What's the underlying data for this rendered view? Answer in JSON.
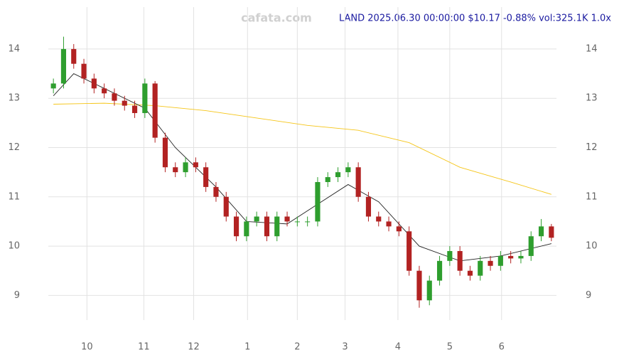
{
  "chart_data": {
    "type": "candlestick",
    "watermark": "cafata.com",
    "title": "LAND 2025.06.30 00:00:00 $10.17 -0.88% vol:325.1K 1.0x",
    "xlim": [
      -0.5,
      49.5
    ],
    "xticks": [
      {
        "value": 3.3,
        "label": "10"
      },
      {
        "value": 8.9,
        "label": "11"
      },
      {
        "value": 13.8,
        "label": "12"
      },
      {
        "value": 19.1,
        "label": "1"
      },
      {
        "value": 24,
        "label": "2"
      },
      {
        "value": 28.7,
        "label": "3"
      },
      {
        "value": 33.9,
        "label": "4"
      },
      {
        "value": 39,
        "label": "5"
      },
      {
        "value": 44.1,
        "label": "6"
      }
    ],
    "ylim": [
      8.5,
      14.85
    ],
    "yticks": [
      9,
      10,
      11,
      12,
      13,
      14
    ],
    "grid": true,
    "up_color": "#2e9e2e",
    "down_color": "#b22222",
    "open": [
      13.2,
      13.3,
      14.0,
      13.7,
      13.4,
      13.2,
      13.1,
      12.95,
      12.85,
      12.7,
      13.3,
      12.2,
      11.6,
      11.5,
      11.7,
      11.6,
      11.2,
      11.0,
      10.6,
      10.2,
      10.5,
      10.6,
      10.2,
      10.6,
      10.5,
      10.5,
      10.5,
      11.3,
      11.4,
      11.5,
      11.6,
      11.0,
      10.6,
      10.5,
      10.4,
      10.3,
      9.5,
      8.9,
      9.3,
      9.7,
      9.9,
      9.5,
      9.4,
      9.7,
      9.6,
      9.8,
      9.75,
      9.8,
      10.2,
      10.4
    ],
    "high": [
      13.4,
      14.25,
      14.1,
      13.8,
      13.5,
      13.3,
      13.2,
      13.05,
      12.95,
      13.4,
      13.35,
      12.3,
      11.7,
      11.8,
      11.8,
      11.7,
      11.3,
      11.1,
      10.7,
      10.6,
      10.7,
      10.7,
      10.7,
      10.7,
      10.6,
      10.6,
      11.4,
      11.5,
      11.6,
      11.7,
      11.7,
      11.1,
      10.7,
      10.6,
      10.5,
      10.4,
      9.6,
      9.4,
      9.8,
      10.0,
      10.0,
      9.6,
      9.8,
      9.8,
      9.9,
      9.9,
      9.9,
      10.3,
      10.55,
      10.45
    ],
    "low": [
      13.1,
      13.2,
      13.6,
      13.3,
      13.1,
      13.0,
      12.85,
      12.75,
      12.6,
      12.6,
      12.1,
      11.5,
      11.4,
      11.4,
      11.5,
      11.1,
      10.9,
      10.5,
      10.1,
      10.1,
      10.4,
      10.1,
      10.1,
      10.4,
      10.4,
      10.4,
      10.4,
      11.2,
      11.3,
      11.4,
      10.9,
      10.5,
      10.4,
      10.3,
      10.2,
      9.4,
      8.75,
      8.8,
      9.2,
      9.6,
      9.4,
      9.3,
      9.3,
      9.5,
      9.5,
      9.65,
      9.65,
      9.7,
      10.1,
      10.1
    ],
    "close": [
      13.3,
      14.0,
      13.7,
      13.4,
      13.2,
      13.1,
      12.95,
      12.85,
      12.7,
      13.3,
      12.2,
      11.6,
      11.5,
      11.7,
      11.6,
      11.2,
      11.0,
      10.6,
      10.2,
      10.5,
      10.6,
      10.2,
      10.6,
      10.5,
      10.5,
      10.5,
      11.3,
      11.4,
      11.5,
      11.6,
      11.0,
      10.6,
      10.5,
      10.4,
      10.3,
      9.5,
      8.9,
      9.3,
      9.7,
      9.9,
      9.5,
      9.4,
      9.7,
      9.6,
      9.8,
      9.75,
      9.8,
      10.2,
      10.4,
      10.17
    ],
    "lines": [
      {
        "color": "#f5c518",
        "x": [
          0,
          5,
          10,
          15,
          20,
          25,
          30,
          35,
          40,
          45,
          49
        ],
        "values": [
          12.88,
          12.9,
          12.85,
          12.75,
          12.6,
          12.45,
          12.35,
          12.1,
          11.6,
          11.3,
          11.05
        ]
      },
      {
        "color": "#222222",
        "x": [
          0,
          2,
          5,
          9,
          12,
          16,
          19,
          23,
          26,
          29,
          32,
          36,
          40,
          44,
          49
        ],
        "values": [
          13.05,
          13.5,
          13.2,
          12.8,
          12.0,
          11.2,
          10.5,
          10.45,
          10.85,
          11.25,
          10.9,
          10.0,
          9.7,
          9.8,
          10.05
        ]
      }
    ]
  }
}
